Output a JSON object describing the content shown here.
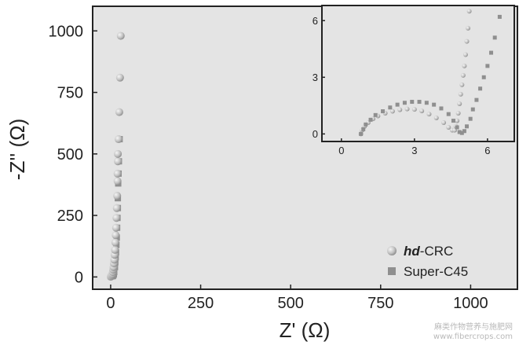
{
  "chart_data": {
    "type": "scatter",
    "main": {
      "xlabel": "Z' (Ω)",
      "ylabel": "-Z'' (Ω)",
      "xlim": [
        -50,
        1130
      ],
      "ylim": [
        -50,
        1100
      ],
      "xticks": [
        0,
        250,
        500,
        750,
        1000
      ],
      "yticks": [
        0,
        250,
        500,
        750,
        1000
      ],
      "series": [
        {
          "name": "Super-C45",
          "marker": "square",
          "color": "#8f8f8f",
          "x": [
            5,
            7,
            9,
            10,
            12,
            13,
            14,
            15,
            16,
            17,
            18,
            19,
            20,
            20,
            21,
            22,
            23,
            25
          ],
          "y": [
            3,
            5,
            10,
            20,
            40,
            60,
            80,
            100,
            130,
            160,
            200,
            240,
            280,
            320,
            380,
            420,
            470,
            560
          ]
        },
        {
          "name": "hd-CRC",
          "marker": "circle",
          "color": "#c4c4c4",
          "x": [
            0,
            1,
            2,
            3,
            5,
            6,
            7,
            8,
            9,
            10,
            11,
            12,
            13,
            14,
            15,
            16,
            17,
            18,
            19,
            19,
            20,
            20,
            22,
            24,
            26,
            28
          ],
          "y": [
            1,
            2,
            4,
            8,
            12,
            20,
            30,
            40,
            55,
            70,
            90,
            110,
            140,
            170,
            200,
            240,
            280,
            330,
            390,
            420,
            470,
            500,
            560,
            670,
            810,
            980
          ]
        }
      ],
      "legend": {
        "placement": "bottom-right",
        "entries": [
          "hd-CRC",
          "Super-C45"
        ]
      }
    },
    "inset": {
      "xlim": [
        -0.8,
        7.1
      ],
      "ylim": [
        -0.4,
        6.8
      ],
      "xticks": [
        0,
        3,
        6
      ],
      "yticks": [
        0,
        3,
        6
      ],
      "series": [
        {
          "name": "hd-CRC",
          "x": [
            0.8,
            0.85,
            0.95,
            1.1,
            1.3,
            1.5,
            1.8,
            2.1,
            2.4,
            2.7,
            3.0,
            3.3,
            3.6,
            3.9,
            4.2,
            4.4,
            4.55,
            4.65,
            4.7,
            4.75,
            4.8,
            4.85,
            4.9,
            4.95,
            5.0,
            5.05,
            5.1,
            5.15,
            5.2,
            5.25
          ],
          "y": [
            0.0,
            0.2,
            0.4,
            0.6,
            0.8,
            0.95,
            1.1,
            1.2,
            1.28,
            1.32,
            1.3,
            1.22,
            1.05,
            0.85,
            0.6,
            0.35,
            0.2,
            0.2,
            0.4,
            0.7,
            1.1,
            1.6,
            2.1,
            2.6,
            3.1,
            3.6,
            4.2,
            4.9,
            5.6,
            6.5
          ]
        },
        {
          "name": "Super-C45",
          "x": [
            0.8,
            0.9,
            1.0,
            1.2,
            1.4,
            1.7,
            2.0,
            2.3,
            2.6,
            2.9,
            3.2,
            3.5,
            3.8,
            4.1,
            4.4,
            4.6,
            4.75,
            4.85,
            4.95,
            5.05,
            5.15,
            5.3,
            5.4,
            5.55,
            5.7,
            5.85,
            6.0,
            6.15,
            6.3,
            6.5
          ],
          "y": [
            0.0,
            0.25,
            0.5,
            0.75,
            1.0,
            1.2,
            1.4,
            1.55,
            1.65,
            1.7,
            1.7,
            1.65,
            1.55,
            1.35,
            1.05,
            0.7,
            0.35,
            0.1,
            0.05,
            0.15,
            0.4,
            0.8,
            1.3,
            1.8,
            2.4,
            3.0,
            3.6,
            4.3,
            5.1,
            6.2
          ]
        }
      ]
    }
  },
  "watermark": {
    "line1": "麻类作物营养与施肥网",
    "line2": "www.fibercrops.com"
  }
}
